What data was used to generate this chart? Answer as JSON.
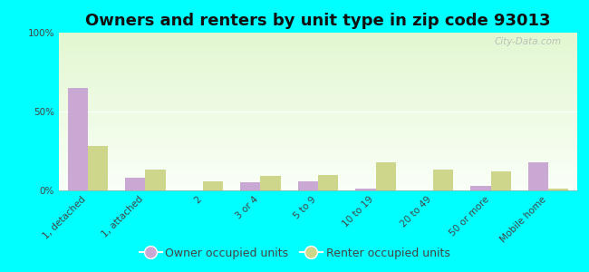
{
  "title": "Owners and renters by unit type in zip code 93013",
  "categories": [
    "1, detached",
    "1, attached",
    "2",
    "3 or 4",
    "5 to 9",
    "10 to 19",
    "20 to 49",
    "50 or more",
    "Mobile home"
  ],
  "owner_values": [
    65,
    8,
    0,
    5,
    6,
    1,
    0,
    3,
    18
  ],
  "renter_values": [
    28,
    13,
    6,
    9,
    10,
    18,
    13,
    12,
    1
  ],
  "owner_color": "#c9a8d4",
  "renter_color": "#cdd68a",
  "ylim": [
    0,
    100
  ],
  "yticks": [
    0,
    50,
    100
  ],
  "ytick_labels": [
    "0%",
    "50%",
    "100%"
  ],
  "bg_top_color": "#f0fae0",
  "bg_bottom_color": "#ffffff",
  "outer_background": "#00ffff",
  "watermark": "City-Data.com",
  "legend_owner": "Owner occupied units",
  "legend_renter": "Renter occupied units",
  "bar_width": 0.35,
  "title_fontsize": 13,
  "tick_fontsize": 7.5,
  "legend_fontsize": 9
}
